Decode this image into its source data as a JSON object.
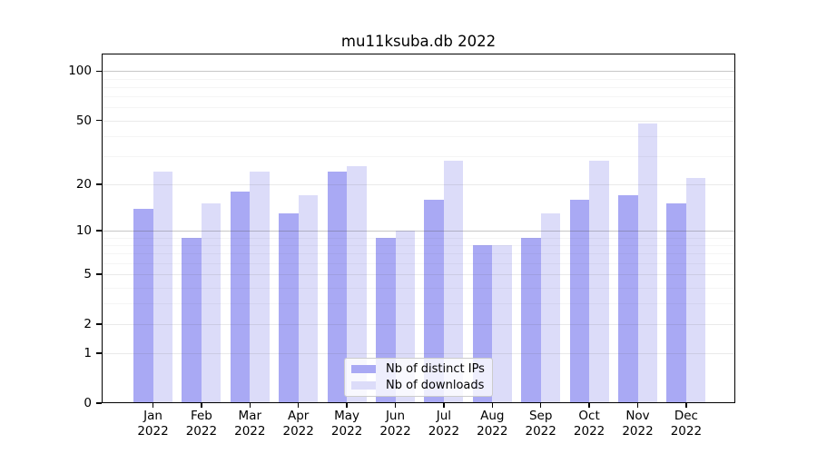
{
  "title": "mu11ksuba.db 2022",
  "chart_data": {
    "type": "bar",
    "title": "mu11ksuba.db 2022",
    "yscale": "log1p",
    "ylim": [
      0,
      128
    ],
    "yticks": [
      0,
      1,
      2,
      5,
      10,
      20,
      50,
      100
    ],
    "minor_gridlines": [
      3,
      4,
      6,
      7,
      8,
      9,
      30,
      40,
      60,
      70,
      80,
      90
    ],
    "emphasized_gridlines": [
      10,
      100
    ],
    "grid": true,
    "categories": [
      "Jan",
      "Feb",
      "Mar",
      "Apr",
      "May",
      "Jun",
      "Jul",
      "Aug",
      "Sep",
      "Oct",
      "Nov",
      "Dec"
    ],
    "year": "2022",
    "series": [
      {
        "name": "Nb of distinct IPs",
        "color": "#a9a9f4",
        "values": [
          14,
          9,
          18,
          13,
          24,
          9,
          16,
          8,
          9,
          16,
          17,
          15
        ]
      },
      {
        "name": "Nb of downloads",
        "color": "#dcdcf9",
        "values": [
          24,
          15,
          24,
          17,
          26,
          10,
          28,
          8,
          13,
          28,
          48,
          22
        ]
      }
    ],
    "legend": {
      "position": "lower-center-inside",
      "items": [
        "Nb of distinct IPs",
        "Nb of downloads"
      ]
    }
  },
  "colors": {
    "background": "#ffffff",
    "spine": "#000000",
    "bar_distinct_ips": "#a9a9f4",
    "bar_downloads": "#dcdcf9",
    "grid_major": "rgba(80,80,80,0.12)",
    "grid_emphasis": "rgba(80,80,80,0.32)",
    "grid_minor": "rgba(80,80,80,0.055)",
    "legend_border": "#cccccc",
    "legend_bg": "rgba(255,255,255,0.8)",
    "text": "#000000"
  }
}
